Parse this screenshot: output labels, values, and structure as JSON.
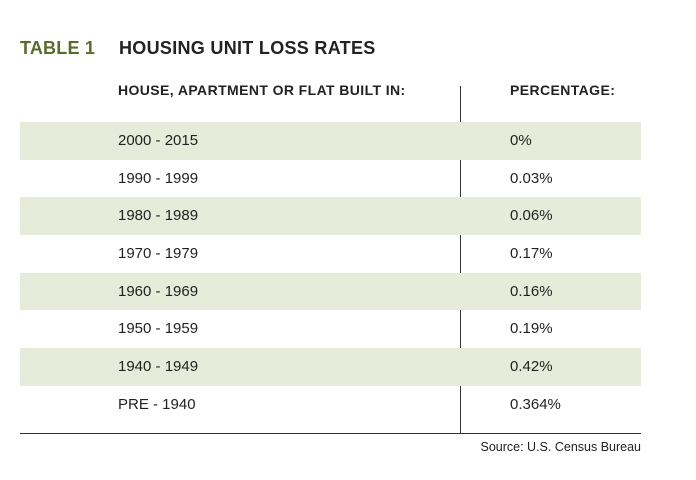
{
  "table": {
    "number_label": "TABLE 1",
    "title": "HOUSING UNIT LOSS RATES",
    "headers": {
      "built_in": "HOUSE, APARTMENT OR FLAT BUILT IN:",
      "percentage": "PERCENTAGE:"
    },
    "rows": [
      {
        "built_in": "2000 - 2015",
        "percentage": "0%"
      },
      {
        "built_in": "1990 - 1999",
        "percentage": "0.03%"
      },
      {
        "built_in": "1980 - 1989",
        "percentage": "0.06%"
      },
      {
        "built_in": "1970 - 1979",
        "percentage": "0.17%"
      },
      {
        "built_in": "1960 - 1969",
        "percentage": "0.16%"
      },
      {
        "built_in": "1950 - 1959",
        "percentage": "0.19%"
      },
      {
        "built_in": "1940 - 1949",
        "percentage": "0.42%"
      },
      {
        "built_in": "PRE - 1940",
        "percentage": "0.364%"
      }
    ],
    "source": "Source: U.S. Census Bureau"
  },
  "colors": {
    "accent_green": "#5b6b2e",
    "row_shade": "#e6ecd9",
    "text": "#222222"
  }
}
